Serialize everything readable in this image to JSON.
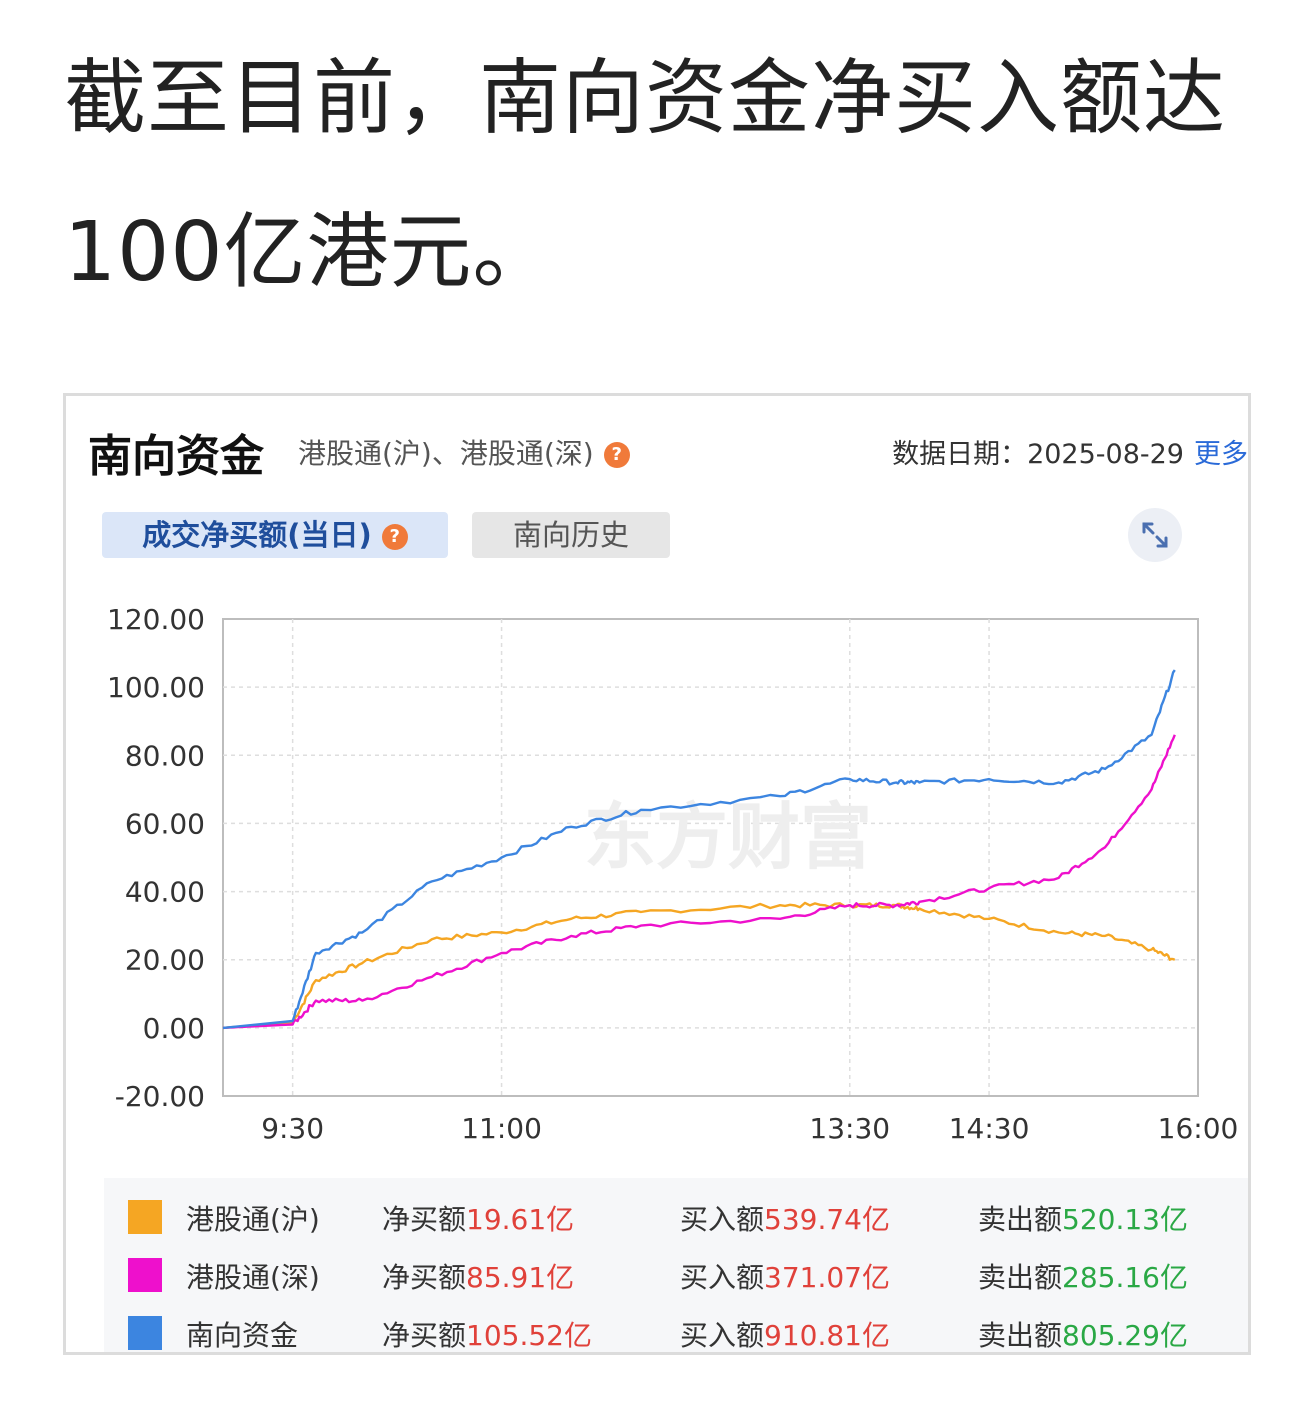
{
  "headline": "截至目前，南向资金净买入额达100亿港元。",
  "card": {
    "title": "南向资金",
    "subtitle": "港股通(沪)、港股通(深)",
    "help": "?",
    "date_label": "数据日期：",
    "date": "2025-08-29",
    "more": "更多",
    "tabs": [
      {
        "label": "成交净买额(当日)",
        "active": true
      },
      {
        "label": "南向历史",
        "active": false
      }
    ],
    "expand_icon": "expand-arrows-icon",
    "watermark": "东方财富"
  },
  "chart_data": {
    "type": "line",
    "title": "",
    "xlabel": "",
    "ylabel": "",
    "ylim": [
      -20,
      120
    ],
    "yticks": [
      "120.00",
      "100.00",
      "80.00",
      "60.00",
      "40.00",
      "20.00",
      "0.00",
      "-20.00"
    ],
    "xticks": [
      "9:30",
      "11:00",
      "13:30",
      "14:30",
      "16:00"
    ],
    "grid": true,
    "x": [
      "9:00",
      "9:30",
      "9:40",
      "10:00",
      "10:30",
      "11:00",
      "11:30",
      "12:00",
      "13:00",
      "13:30",
      "13:50",
      "14:00",
      "14:30",
      "15:00",
      "15:20",
      "15:40",
      "15:50"
    ],
    "series": [
      {
        "name": "港股通(沪)",
        "color": "#f5a623",
        "values": [
          0,
          1.5,
          14,
          19,
          26,
          28,
          32,
          34,
          36,
          36,
          36,
          35,
          32,
          28,
          27,
          23,
          20
        ]
      },
      {
        "name": "港股通(深)",
        "color": "#ee10cc",
        "values": [
          0,
          1,
          8,
          8,
          15,
          22,
          27,
          30,
          32,
          36,
          36,
          37,
          41,
          44,
          53,
          70,
          86
        ]
      },
      {
        "name": "南向资金",
        "color": "#3c85e0",
        "values": [
          0,
          2,
          22,
          28,
          43,
          50,
          59,
          64,
          68,
          73,
          72,
          72,
          73,
          72,
          76,
          86,
          105
        ]
      }
    ]
  },
  "legend": [
    {
      "name": "港股通(沪)",
      "color": "#f5a623",
      "net_label": "净买额",
      "net": "19.61亿",
      "buy_label": "买入额",
      "buy": "539.74亿",
      "sell_label": "卖出额",
      "sell": "520.13亿"
    },
    {
      "name": "港股通(深)",
      "color": "#ee10cc",
      "net_label": "净买额",
      "net": "85.91亿",
      "buy_label": "买入额",
      "buy": "371.07亿",
      "sell_label": "卖出额",
      "sell": "285.16亿"
    },
    {
      "name": "南向资金",
      "color": "#3c85e0",
      "net_label": "净买额",
      "net": "105.52亿",
      "buy_label": "买入额",
      "buy": "910.81亿",
      "sell_label": "卖出额",
      "sell": "805.29亿"
    }
  ]
}
